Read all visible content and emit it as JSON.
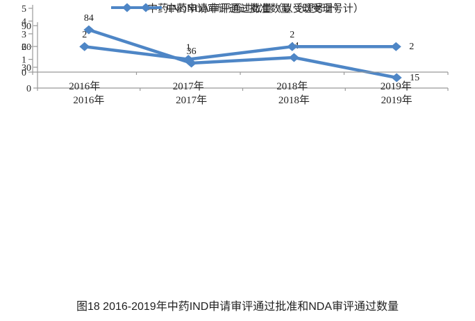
{
  "colors": {
    "line": "#4E86C6",
    "axis": "#999999",
    "tick_text": "#262626",
    "data_label": "#1a1a1a"
  },
  "chart_data": [
    {
      "type": "line",
      "name": "ind-approvals-by-year",
      "categories": [
        "2016年",
        "2017年",
        "2018年",
        "2019年"
      ],
      "series": [
        {
          "name": "中药IND申请审评通过批准数量（以受理号计）",
          "values": [
            84,
            36,
            44,
            15
          ]
        }
      ],
      "data_labels": [
        "84",
        "36",
        "44",
        "15"
      ],
      "ylim": [
        0,
        90
      ],
      "yticks": [
        0,
        30,
        60,
        90
      ],
      "grid": false,
      "marker": "diamond",
      "legend": {
        "position": "bottom",
        "label": "中药IND申请审评通过批准数量（以受理号计）"
      }
    },
    {
      "type": "line",
      "name": "nda-approvals-by-year",
      "categories": [
        "2016年",
        "2017年",
        "2018年",
        "2019年"
      ],
      "series": [
        {
          "name": "中药NDA审评通过数量（以受理号计）",
          "values": [
            2,
            1,
            2,
            2
          ]
        }
      ],
      "data_labels": [
        "2",
        "1",
        "2",
        "2"
      ],
      "ylim": [
        0,
        5
      ],
      "yticks": [
        0,
        1,
        2,
        3,
        4,
        5
      ],
      "grid": false,
      "marker": "diamond",
      "legend": {
        "position": "bottom",
        "label": "中药NDA审评通过数量（以受理号计）"
      }
    }
  ],
  "caption": "图18 2016-2019年中药IND申请审评通过批准和NDA审评通过数量"
}
